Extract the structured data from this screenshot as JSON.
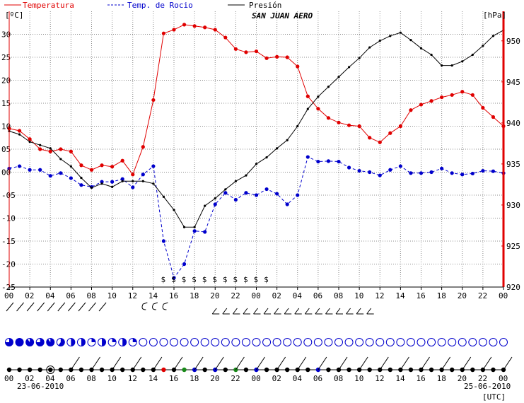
{
  "legend": {
    "temperature": "Temperatura",
    "dew_point": "Temp. de Rocio",
    "pressure": "Presión"
  },
  "station": "SAN JUAN AERO",
  "left_unit": "[ºC]",
  "right_unit": "[hPa]",
  "utc_label": "[UTC]",
  "date_start": "23-06-2010",
  "date_end": "25-06-2010",
  "colors": {
    "temperature": "#e00000",
    "dew_point": "#0000cc",
    "pressure": "#000000",
    "right_axis": "#e00000",
    "grid": "#8c8c8c"
  },
  "chart_data": {
    "type": "line",
    "x": [
      "00",
      "01",
      "02",
      "03",
      "04",
      "05",
      "06",
      "07",
      "08",
      "09",
      "10",
      "11",
      "12",
      "13",
      "14",
      "15",
      "16",
      "17",
      "18",
      "19",
      "20",
      "21",
      "22",
      "23",
      "00",
      "01",
      "02",
      "03",
      "04",
      "05",
      "06",
      "07",
      "08",
      "09",
      "10",
      "11",
      "12",
      "13",
      "14",
      "15",
      "16",
      "17",
      "18",
      "19",
      "20",
      "21",
      "22",
      "23",
      "00"
    ],
    "x_tick_labels": [
      "00",
      "02",
      "04",
      "06",
      "08",
      "10",
      "12",
      "14",
      "16",
      "18",
      "20",
      "22",
      "00",
      "02",
      "04",
      "06",
      "08",
      "10",
      "12",
      "14",
      "16",
      "18",
      "20",
      "22",
      "00"
    ],
    "y_left": {
      "unit": "[ºC]",
      "ylim": [
        -25,
        35
      ],
      "ticks": [
        30,
        25,
        20,
        15,
        10,
        5,
        0,
        -5,
        -10,
        -15,
        -20,
        -25
      ],
      "tick_labels": [
        "30",
        "25",
        "20",
        "15",
        "10",
        "05",
        "00",
        "-05",
        "-10",
        "-15",
        "-20",
        "-25"
      ]
    },
    "y_right": {
      "unit": "[hPa]",
      "ylim": [
        920,
        953.6
      ],
      "ticks": [
        950,
        945,
        940,
        935,
        930,
        925,
        920
      ]
    },
    "grid": true,
    "series": [
      {
        "name": "Temperatura",
        "axis": "left",
        "values": [
          9.5,
          9,
          7.2,
          5,
          4.5,
          5,
          4.5,
          1.5,
          0.5,
          1.5,
          1.2,
          2.5,
          -0.5,
          5.5,
          15.7,
          30.2,
          31,
          32.1,
          31.8,
          31.5,
          31,
          29.3,
          26.8,
          26.1,
          26.3,
          24.8,
          25.1,
          25,
          23,
          16.5,
          13.8,
          11.8,
          10.8,
          10.2,
          10,
          7.5,
          6.5,
          8.5,
          10,
          13.5,
          14.7,
          15.5,
          16.3,
          16.8,
          17.5,
          16.8,
          14,
          12,
          10
        ]
      },
      {
        "name": "Temp. de Rocio",
        "axis": "left",
        "values": [
          0.8,
          1.3,
          0.5,
          0.5,
          -0.8,
          -0.2,
          -1.3,
          -2.8,
          -3.2,
          -2.1,
          -2.1,
          -1.5,
          -3.3,
          -0.5,
          1.3,
          -15,
          -23,
          -20,
          -12.8,
          -13,
          -7,
          -4.5,
          -6,
          -4.5,
          -5,
          -3.7,
          -4.7,
          -7,
          -5,
          3.3,
          2.3,
          2.4,
          2.3,
          1,
          0.3,
          0,
          -0.7,
          0.5,
          1.3,
          -0.2,
          -0.2,
          0,
          0.8,
          -0.2,
          -0.5,
          -0.3,
          0.3,
          0.2,
          -0.2
        ]
      },
      {
        "name": "Presión",
        "axis": "right",
        "values": [
          939,
          938.6,
          937.7,
          937.3,
          936.9,
          935.6,
          934.7,
          933.3,
          932.1,
          932.6,
          932.2,
          932.9,
          932.9,
          932.9,
          932.6,
          931,
          929.4,
          927.3,
          927.3,
          929.9,
          930.8,
          931.9,
          932.9,
          933.6,
          935,
          935.8,
          936.9,
          937.9,
          939.6,
          941.7,
          943.2,
          944.4,
          945.6,
          946.8,
          947.9,
          949.2,
          950,
          950.6,
          951,
          950.1,
          949.1,
          948.3,
          947,
          947,
          947.5,
          948.3,
          949.4,
          950.6,
          951.3
        ]
      }
    ],
    "precip_marker": "$",
    "precip_hours": [
      "15",
      "16",
      "17",
      "18",
      "19",
      "20",
      "21",
      "22",
      "23",
      "00",
      "01"
    ]
  }
}
